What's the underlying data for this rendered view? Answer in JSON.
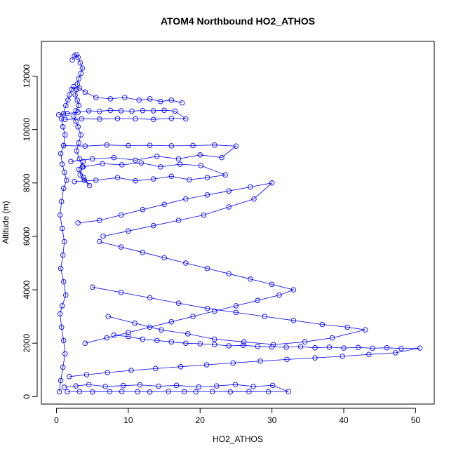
{
  "chart_data": {
    "type": "scatter",
    "title": "ATOM4 Northbound HO2_ATHOS",
    "xlabel": "HO2_ATHOS",
    "ylabel": "Altitude (m)",
    "xlim": [
      -2.1,
      52.6
    ],
    "ylim": [
      -280,
      13300
    ],
    "xticks": [
      0,
      10,
      20,
      30,
      40,
      50
    ],
    "yticks": [
      0,
      2000,
      4000,
      6000,
      8000,
      10000,
      12000
    ],
    "grid": false,
    "legend": "none",
    "style": {
      "color": "#0000ff",
      "marker": "open-circle",
      "lines": true
    },
    "series": [
      {
        "x": [
          0.4,
          0.6,
          0.9,
          1.2,
          1.0,
          0.7,
          0.5,
          0.8,
          1.3,
          1.0,
          0.6,
          0.9,
          1.1,
          0.8,
          0.5,
          0.7,
          1.0,
          1.4,
          1.1,
          0.8,
          0.6,
          1.0,
          1.2,
          0.9,
          0.7,
          1.0,
          1.3,
          1.6,
          1.8,
          2.1,
          2.4,
          2.8,
          2.6,
          2.9,
          3.1,
          2.7,
          2.4,
          2.7,
          3.0,
          3.4,
          3.1,
          2.8,
          3.2,
          3.6,
          3.3,
          3.9,
          4.6,
          3.8,
          3.1,
          3.7
        ],
        "y": [
          180,
          600,
          1100,
          1600,
          2100,
          2600,
          3100,
          3400,
          3800,
          4300,
          4800,
          5300,
          5800,
          6300,
          6800,
          7300,
          7800,
          8100,
          8400,
          8700,
          9100,
          9400,
          9800,
          10100,
          10400,
          10600,
          10900,
          11100,
          11300,
          11500,
          11600,
          11500,
          11300,
          11100,
          10900,
          10700,
          10500,
          10300,
          10100,
          9800,
          9500,
          9200,
          8900,
          8600,
          8300,
          8100,
          7900,
          8200,
          8500,
          8800
        ]
      },
      {
        "x": [
          1.5,
          3.2,
          5.0,
          7.4,
          9.1,
          11.3,
          13.0,
          15.6,
          17.8,
          19.4,
          21.7,
          24.2,
          26.8,
          29.5,
          32.3,
          30.1,
          27.4,
          24.9,
          22.3,
          19.8,
          16.7,
          14.2,
          11.6,
          9.3,
          6.8,
          4.5,
          2.7,
          1.1
        ],
        "y": [
          180,
          190,
          175,
          185,
          190,
          180,
          175,
          195,
          185,
          180,
          190,
          175,
          185,
          180,
          190,
          420,
          380,
          450,
          400,
          360,
          420,
          390,
          440,
          410,
          380,
          450,
          400,
          350
        ]
      },
      {
        "x": [
          2.5,
          5.5,
          8.5,
          11.0,
          13.5,
          16.0,
          18.5,
          21.0,
          23.5,
          20.1,
          17.2,
          14.5,
          11.8,
          9.1,
          6.4,
          3.7
        ],
        "y": [
          8050,
          8100,
          8200,
          8080,
          8150,
          8250,
          8120,
          8200,
          8300,
          8650,
          8700,
          8600,
          8750,
          8680,
          8720,
          8600
        ]
      },
      {
        "x": [
          8.0,
          10.0,
          12.0,
          14.0,
          16.0,
          18.0,
          20.0,
          22.0,
          24.0,
          26.0,
          28.0,
          30.0,
          32.0,
          34.0,
          36.0,
          38.0,
          40.0,
          42.0,
          44.0,
          46.0,
          48.0,
          50.6,
          47.2,
          43.5,
          39.8,
          36.0,
          32.1,
          28.4,
          24.6,
          20.9,
          17.3,
          13.8,
          10.4,
          7.1,
          4.2,
          1.8
        ],
        "y": [
          2300,
          2250,
          2150,
          2100,
          2050,
          2000,
          1980,
          1950,
          1900,
          1920,
          1880,
          1860,
          1850,
          1870,
          1830,
          1850,
          1820,
          1840,
          1810,
          1830,
          1800,
          1820,
          1640,
          1580,
          1510,
          1450,
          1390,
          1330,
          1260,
          1190,
          1120,
          1050,
          980,
          900,
          820,
          750
        ]
      },
      {
        "x": [
          5.0,
          9.0,
          13.0,
          17.0,
          21.0,
          25.0,
          29.0,
          33.0,
          37.0,
          40.5,
          43.0,
          38.4,
          34.6,
          30.2,
          26.1,
          22.0,
          18.3,
          14.6,
          10.9,
          7.2
        ],
        "y": [
          4100,
          3900,
          3700,
          3500,
          3300,
          3150,
          3000,
          2850,
          2700,
          2600,
          2500,
          2200,
          2050,
          1950,
          2050,
          2150,
          2350,
          2500,
          2750,
          3000
        ]
      },
      {
        "x": [
          3.0,
          6.0,
          9.0,
          12.0,
          15.0,
          18.0,
          21.0,
          24.0,
          27.0,
          30.0,
          27.5,
          24.0,
          20.5,
          17.0,
          13.5,
          10.0,
          6.5
        ],
        "y": [
          6500,
          6600,
          6800,
          7000,
          7200,
          7400,
          7550,
          7700,
          7850,
          8000,
          7400,
          7100,
          6800,
          6600,
          6400,
          6200,
          6000
        ]
      },
      {
        "x": [
          0.3,
          1.5,
          3.0,
          4.5,
          6.0,
          7.5,
          9.0,
          10.5,
          12.0,
          13.5,
          15.0,
          16.5,
          18.0,
          16.0,
          13.5,
          11.0,
          8.5,
          6.0,
          3.5,
          1.2
        ],
        "y": [
          10550,
          10600,
          10650,
          10700,
          10680,
          10720,
          10700,
          10690,
          10710,
          10700,
          10720,
          10690,
          10400,
          10420,
          10380,
          10400,
          10410,
          10390,
          10400,
          10380
        ]
      },
      {
        "x": [
          2.2,
          2.5,
          2.8,
          3.0,
          3.3,
          3.6,
          3.4,
          3.1,
          2.9,
          3.2,
          4.0,
          5.5,
          7.5,
          9.5,
          11.5,
          13.0,
          14.5,
          16.0,
          17.5
        ],
        "y": [
          12600,
          12750,
          12800,
          12700,
          12500,
          12300,
          12100,
          11900,
          11700,
          11550,
          11400,
          11200,
          11150,
          11200,
          11100,
          11150,
          11050,
          11100,
          11000
        ]
      },
      {
        "x": [
          1.0,
          4.0,
          7.0,
          10.0,
          13.0,
          16.0,
          19.0,
          22.0,
          25.0,
          23.0,
          20.0,
          17.0,
          14.0,
          11.0,
          8.0,
          5.0,
          2.0
        ],
        "y": [
          9400,
          9380,
          9420,
          9400,
          9410,
          9390,
          9400,
          9420,
          9380,
          8950,
          9050,
          8900,
          9000,
          8850,
          8950,
          8900,
          8800
        ]
      },
      {
        "x": [
          6.0,
          9.0,
          12.0,
          15.0,
          18.0,
          21.0,
          24.0,
          27.0,
          30.0,
          33.0,
          31.0,
          28.0,
          25.0,
          22.0,
          19.0,
          16.0,
          13.0,
          10.0,
          7.0,
          4.0
        ],
        "y": [
          5800,
          5600,
          5400,
          5200,
          5000,
          4800,
          4600,
          4400,
          4200,
          4000,
          3800,
          3600,
          3400,
          3200,
          3000,
          2800,
          2600,
          2400,
          2200,
          2000
        ]
      }
    ]
  }
}
